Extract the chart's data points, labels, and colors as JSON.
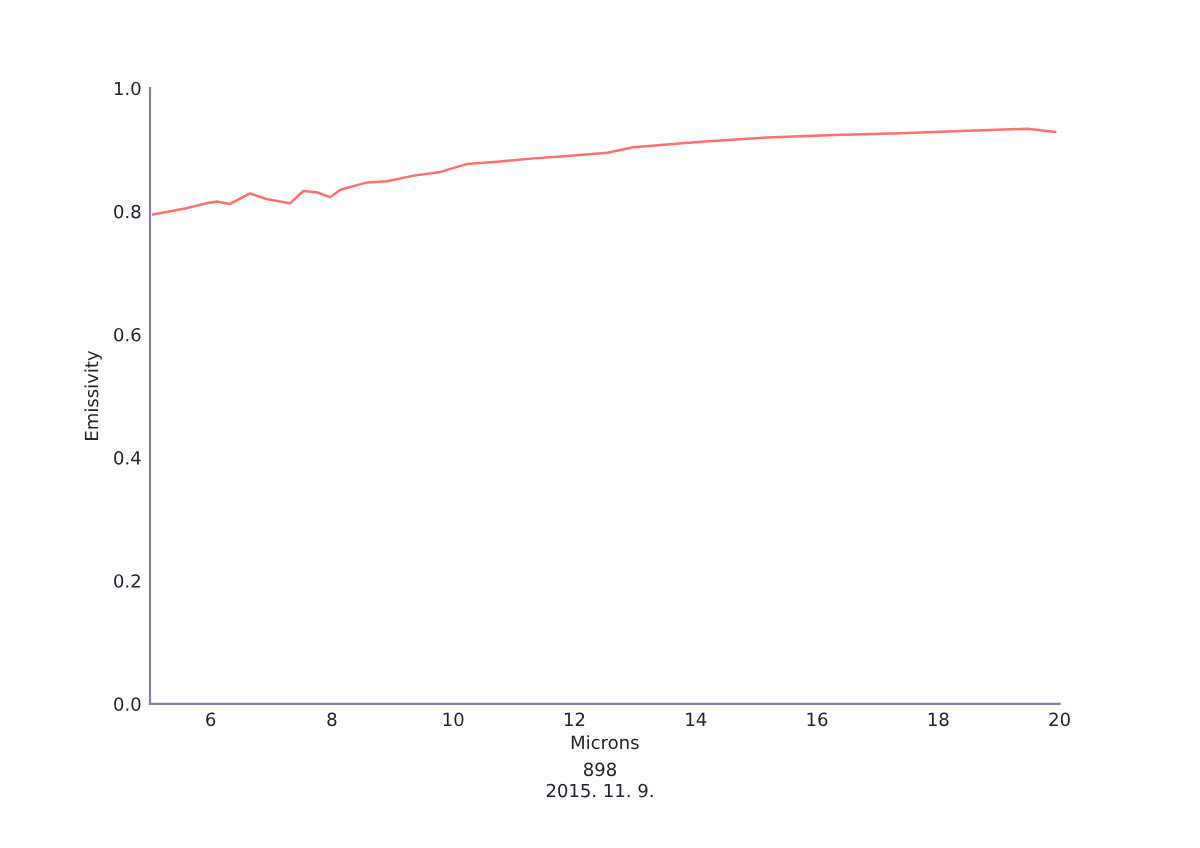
{
  "chart_data": {
    "type": "line",
    "xlabel": "Microns",
    "ylabel": "Emissivity",
    "annotations": [
      "898",
      "2015. 11. 9."
    ],
    "xlim": [
      5,
      20
    ],
    "xticks": [
      6,
      8,
      10,
      12,
      14,
      16,
      18,
      20
    ],
    "ylim": [
      0,
      1
    ],
    "yticks": [
      {
        "value": 0,
        "label": "0.0"
      },
      {
        "value": 0.2,
        "label": "0.2"
      },
      {
        "value": 0.4,
        "label": "0.4"
      },
      {
        "value": 0.6,
        "label": "0.6"
      },
      {
        "value": 0.8,
        "label": "0.8"
      },
      {
        "value": 1,
        "label": "1.0"
      }
    ],
    "grid": false,
    "legend": false,
    "series": [
      {
        "color": "#ff7070",
        "x": [
          5.05,
          5.27,
          5.6,
          5.93,
          6.1,
          6.32,
          6.65,
          6.92,
          7.31,
          7.53,
          7.75,
          7.97,
          8.14,
          8.58,
          8.91,
          9.35,
          9.79,
          10.23,
          10.78,
          11.33,
          11.88,
          12.54,
          12.97,
          14.08,
          15.18,
          16.28,
          17.38,
          18.48,
          19.47,
          19.93
        ],
        "values": [
          0.795,
          0.799,
          0.805,
          0.813,
          0.816,
          0.812,
          0.829,
          0.82,
          0.813,
          0.833,
          0.831,
          0.823,
          0.835,
          0.847,
          0.849,
          0.858,
          0.864,
          0.877,
          0.881,
          0.886,
          0.89,
          0.895,
          0.904,
          0.913,
          0.92,
          0.924,
          0.927,
          0.931,
          0.934,
          0.929
        ]
      }
    ]
  }
}
